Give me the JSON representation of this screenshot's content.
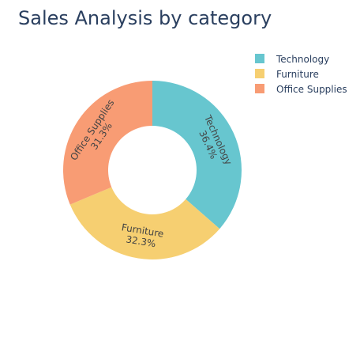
{
  "chart_data": {
    "type": "pie",
    "hole": true,
    "title": "Sales Analysis by category",
    "categories": [
      "Technology",
      "Furniture",
      "Office Supplies"
    ],
    "values": [
      36.4,
      32.3,
      31.3
    ],
    "percent_labels": [
      "36.4%",
      "32.3%",
      "31.3%"
    ],
    "colors": [
      "#67c6cf",
      "#f6cf71",
      "#f89c74"
    ],
    "legend_position": "top-right"
  }
}
